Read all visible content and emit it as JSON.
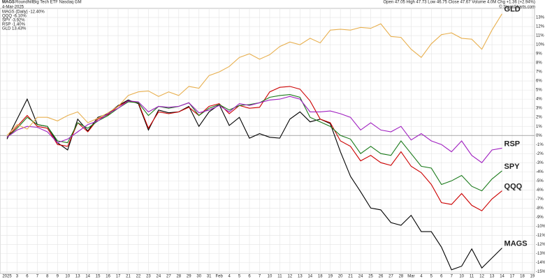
{
  "chart_data": {
    "type": "line",
    "symbol": "MAGS",
    "description": "RoundhillBig Tech ETF  Nasdaq GM",
    "date": "4-Mar-2025",
    "quote": "Open 47.05  High 47.73  Low 46.75  Close 47.67  Volume 4.0M  Chg +1.36 (+2.94%)",
    "credit": "© StockCharts.com",
    "legend": [
      "MAGS (Daily) -12.40%",
      "QQQ -6.10%",
      "SPY -3.92%",
      "RSP -1.40%",
      "GLD 13.43%"
    ],
    "categories": [
      "2025",
      "3",
      "6",
      "7",
      "8",
      "9",
      "10",
      "13",
      "14",
      "15",
      "16",
      "17",
      "21",
      "22",
      "23",
      "24",
      "27",
      "28",
      "29",
      "30",
      "31",
      "Feb",
      "4",
      "5",
      "6",
      "7",
      "10",
      "11",
      "12",
      "13",
      "14",
      "18",
      "19",
      "20",
      "21",
      "24",
      "25",
      "26",
      "27",
      "28",
      "Mar",
      "4",
      "5",
      "6",
      "7",
      "10",
      "11",
      "12",
      "13",
      "14",
      "17",
      "18",
      "19"
    ],
    "series": [
      {
        "name": "MAGS",
        "color": "#000000",
        "values": [
          -0.4,
          1.8,
          4.0,
          1.2,
          1.0,
          -0.8,
          -1.6,
          1.8,
          0.5,
          2.0,
          2.4,
          3.3,
          3.9,
          3.5,
          0.6,
          2.8,
          2.5,
          2.6,
          3.2,
          1.0,
          2.6,
          3.4,
          1.1,
          2.0,
          -0.3,
          0.2,
          -0.2,
          -0.3,
          1.8,
          2.6,
          1.5,
          1.8,
          1.3,
          -1.8,
          -4.5,
          -6.2,
          -8.0,
          -8.2,
          -9.6,
          -9.9,
          -8.8,
          -10.6,
          -10.6,
          -12.3,
          -14.8,
          -14.4,
          -12.5,
          -14.6,
          -13.5,
          -12.4,
          null,
          null,
          null
        ]
      },
      {
        "name": "QQQ",
        "color": "#cc0000",
        "values": [
          -0.2,
          1.0,
          2.2,
          1.0,
          0.8,
          -1.0,
          -1.2,
          1.4,
          0.4,
          1.8,
          2.3,
          3.2,
          3.8,
          3.6,
          0.8,
          2.6,
          2.4,
          2.6,
          3.1,
          2.2,
          3.2,
          3.5,
          2.4,
          3.3,
          3.0,
          3.1,
          4.8,
          5.3,
          5.4,
          5.1,
          3.8,
          1.8,
          1.4,
          -0.6,
          -1.2,
          -2.8,
          -2.2,
          -3.0,
          -3.3,
          -1.8,
          -3.4,
          -4.1,
          -5.4,
          -7.4,
          -7.6,
          -6.4,
          -7.7,
          -8.3,
          -7.0,
          -6.1,
          null,
          null,
          null
        ]
      },
      {
        "name": "SPY",
        "color": "#1a7a1a",
        "values": [
          -0.2,
          0.8,
          2.0,
          1.2,
          1.0,
          -0.6,
          -0.8,
          1.4,
          0.8,
          1.6,
          2.2,
          3.0,
          3.7,
          3.6,
          2.2,
          3.2,
          3.0,
          3.2,
          3.6,
          2.2,
          3.0,
          3.4,
          2.8,
          3.3,
          3.4,
          3.6,
          4.2,
          4.4,
          4.5,
          4.2,
          2.0,
          1.5,
          1.0,
          0.0,
          -0.4,
          -2.0,
          -1.2,
          -2.0,
          -2.2,
          -0.6,
          -2.0,
          -3.4,
          -3.6,
          -5.4,
          -5.0,
          -4.4,
          -5.6,
          -6.1,
          -4.8,
          -3.9,
          null,
          null,
          null
        ]
      },
      {
        "name": "RSP",
        "color": "#a020c0",
        "values": [
          -0.2,
          0.6,
          1.0,
          0.9,
          0.4,
          -0.8,
          -0.4,
          0.4,
          1.2,
          1.6,
          2.4,
          3.0,
          3.8,
          3.7,
          2.6,
          3.2,
          3.1,
          3.2,
          3.6,
          2.5,
          2.8,
          3.3,
          2.6,
          3.5,
          3.3,
          3.6,
          3.9,
          4.0,
          4.3,
          4.0,
          2.6,
          2.6,
          2.7,
          2.4,
          2.0,
          0.6,
          1.4,
          0.6,
          0.4,
          1.0,
          -0.5,
          0.2,
          -0.6,
          -1.0,
          -1.8,
          -0.6,
          -2.2,
          -3.0,
          -1.6,
          -1.4,
          null,
          null,
          null
        ]
      },
      {
        "name": "GLD",
        "color": "#e8b050",
        "values": [
          0.0,
          1.2,
          0.7,
          2.0,
          2.0,
          1.6,
          2.2,
          2.6,
          1.4,
          1.9,
          2.5,
          3.2,
          4.4,
          4.8,
          4.9,
          4.3,
          4.8,
          4.4,
          5.4,
          5.2,
          6.6,
          7.0,
          7.6,
          8.6,
          9.0,
          8.4,
          8.9,
          9.8,
          10.3,
          10.0,
          10.7,
          10.2,
          11.6,
          11.7,
          11.6,
          11.9,
          11.8,
          12.3,
          10.9,
          10.8,
          9.5,
          8.6,
          10.1,
          11.1,
          11.3,
          10.7,
          10.6,
          9.5,
          11.6,
          13.4,
          null,
          null,
          null
        ]
      }
    ],
    "ylim": [
      -15.2,
      14
    ],
    "yticks": [
      {
        "value": 13,
        "label": "13%"
      },
      {
        "value": 12,
        "label": "12%"
      },
      {
        "value": 11,
        "label": "11%"
      },
      {
        "value": 10,
        "label": "10%"
      },
      {
        "value": 9,
        "label": "9%"
      },
      {
        "value": 8,
        "label": "8%"
      },
      {
        "value": 7,
        "label": "7%"
      },
      {
        "value": 6,
        "label": "6%"
      },
      {
        "value": 5,
        "label": "5%"
      },
      {
        "value": 4,
        "label": "4%"
      },
      {
        "value": 3,
        "label": "3%"
      },
      {
        "value": 2,
        "label": "2%"
      },
      {
        "value": 1,
        "label": "1%"
      },
      {
        "value": 0,
        "label": "0%"
      },
      {
        "value": -1,
        "label": "-1%"
      },
      {
        "value": -2,
        "label": "-2%"
      },
      {
        "value": -3,
        "label": "-3%"
      },
      {
        "value": -4,
        "label": "-4%"
      },
      {
        "value": -5,
        "label": "-5%"
      },
      {
        "value": -6,
        "label": "-6%"
      },
      {
        "value": -7,
        "label": "-7%"
      },
      {
        "value": -8,
        "label": "-8%"
      },
      {
        "value": -9,
        "label": "-9%"
      },
      {
        "value": -10,
        "label": "-10%"
      },
      {
        "value": -11,
        "label": "-11%"
      },
      {
        "value": -12,
        "label": "-12%"
      },
      {
        "value": -13,
        "label": "-13%"
      },
      {
        "value": -14,
        "label": "-14%"
      },
      {
        "value": -15,
        "label": "-15%"
      }
    ],
    "grid": true
  }
}
